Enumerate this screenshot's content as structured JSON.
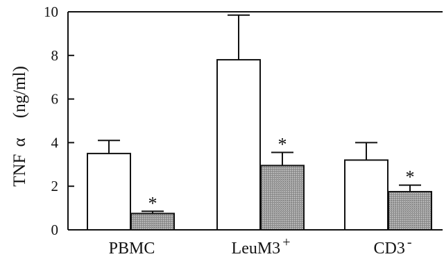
{
  "chart_data": {
    "type": "bar",
    "title": "",
    "ylabel": "TNF α (ng/ml)",
    "ylabel_parts": [
      "TNF",
      "α",
      "(ng/ml)"
    ],
    "xlabel": "",
    "ylim": [
      0,
      10
    ],
    "yticks": [
      "0",
      "2",
      "4",
      "6",
      "8",
      "10"
    ],
    "categories": [
      {
        "base": "PBMC",
        "sup": ""
      },
      {
        "base": "LeuM3",
        "sup": "+"
      },
      {
        "base": "CD3",
        "sup": "-"
      }
    ],
    "series": [
      {
        "fill": "#ffffff",
        "values": [
          3.5,
          7.8,
          3.2
        ],
        "errors": [
          0.6,
          2.05,
          0.8
        ],
        "marks": [
          "",
          "",
          ""
        ]
      },
      {
        "fill": "#9a9a9a",
        "values": [
          0.75,
          2.95,
          1.75
        ],
        "errors": [
          0.1,
          0.6,
          0.3
        ],
        "marks": [
          "*",
          "*",
          "*"
        ]
      }
    ],
    "grid": false,
    "legend": "none"
  }
}
